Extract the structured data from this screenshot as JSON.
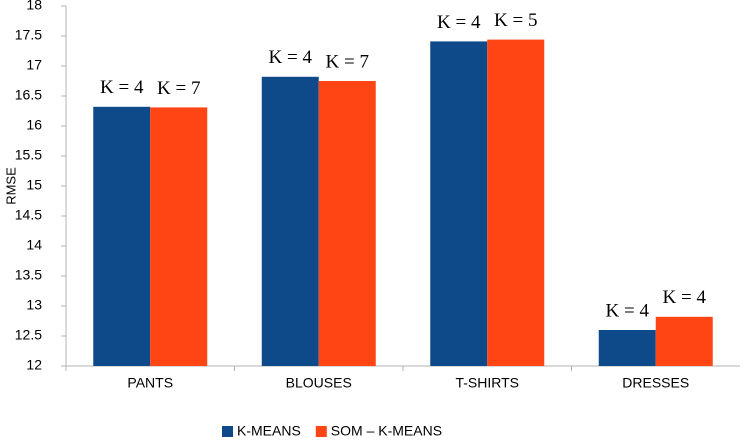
{
  "chart_data": {
    "type": "bar",
    "y_label": "RMSE",
    "categories": [
      "PANTS",
      "BLOUSES",
      "T-SHIRTS",
      "DRESSES"
    ],
    "series": [
      {
        "name": "K-MEANS",
        "color": "#0e4a8a",
        "values": [
          16.32,
          16.82,
          17.41,
          12.6
        ],
        "annotations": [
          "K = 4",
          "K = 4",
          "K = 4",
          "K = 4"
        ]
      },
      {
        "name": "SOM – K-MEANS",
        "color": "#ff4513",
        "values": [
          16.31,
          16.75,
          17.44,
          12.82
        ],
        "annotations": [
          "K = 7",
          "K = 7",
          "K = 5",
          "K = 4"
        ]
      }
    ],
    "ylim": [
      12,
      18
    ],
    "yticks": [
      12,
      12.5,
      13,
      13.5,
      14,
      14.5,
      15,
      15.5,
      16,
      16.5,
      17,
      17.5,
      18
    ],
    "grid": false,
    "legend": "bottom"
  }
}
